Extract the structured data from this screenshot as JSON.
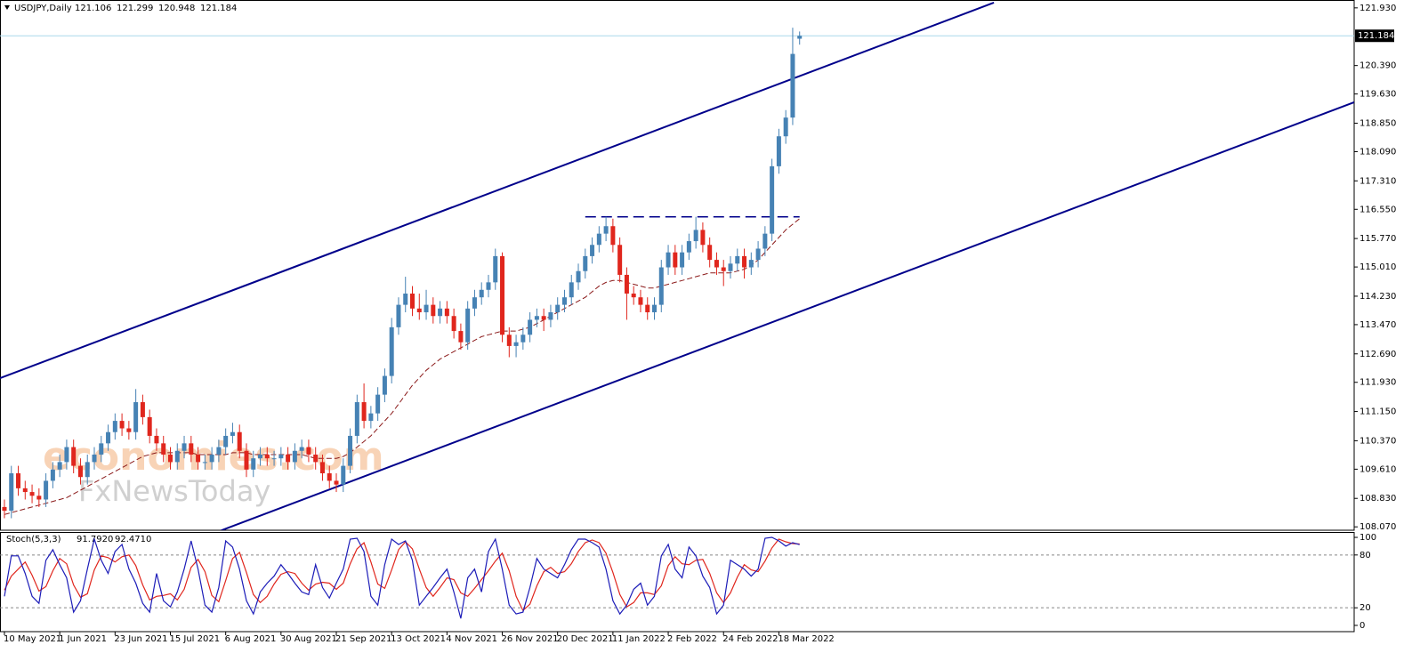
{
  "chart_data": {
    "type": "candlestick",
    "symbol": "USDJPY,Daily",
    "xlim": [
      -0.64,
      195.2
    ],
    "ylim": [
      107.98,
      122.14
    ],
    "yticks": [
      {
        "value": 108.07,
        "label": "108.070"
      },
      {
        "value": 108.83,
        "label": "108.830"
      },
      {
        "value": 109.61,
        "label": "109.610"
      },
      {
        "value": 110.37,
        "label": "110.370"
      },
      {
        "value": 111.15,
        "label": "111.150"
      },
      {
        "value": 111.93,
        "label": "111.930"
      },
      {
        "value": 112.69,
        "label": "112.690"
      },
      {
        "value": 113.47,
        "label": "113.470"
      },
      {
        "value": 114.23,
        "label": "114.230"
      },
      {
        "value": 115.01,
        "label": "115.010"
      },
      {
        "value": 115.77,
        "label": "115.770"
      },
      {
        "value": 116.55,
        "label": "116.550"
      },
      {
        "value": 117.31,
        "label": "117.310"
      },
      {
        "value": 118.09,
        "label": "118.090"
      },
      {
        "value": 118.85,
        "label": "118.850"
      },
      {
        "value": 119.63,
        "label": "119.630"
      },
      {
        "value": 120.39,
        "label": "120.390"
      },
      {
        "value": 121.93,
        "label": "121.930"
      }
    ],
    "xticks": [
      {
        "value": 0,
        "label": "10 May 2021"
      },
      {
        "value": 8,
        "label": "1 Jun 2021"
      },
      {
        "value": 16,
        "label": "23 Jun 2021"
      },
      {
        "value": 24,
        "label": "15 Jul 2021"
      },
      {
        "value": 32,
        "label": "6 Aug 2021"
      },
      {
        "value": 40,
        "label": "30 Aug 2021"
      },
      {
        "value": 48,
        "label": "21 Sep 2021"
      },
      {
        "value": 56,
        "label": "13 Oct 2021"
      },
      {
        "value": 64,
        "label": "4 Nov 2021"
      },
      {
        "value": 72,
        "label": "26 Nov 2021"
      },
      {
        "value": 80,
        "label": "20 Dec 2021"
      },
      {
        "value": 88,
        "label": "11 Jan 2022"
      },
      {
        "value": 96,
        "label": "2 Feb 2022"
      },
      {
        "value": 104,
        "label": "24 Feb 2022"
      },
      {
        "value": 112,
        "label": "18 Mar 2022"
      }
    ],
    "up_color": "#4682b4",
    "down_color": "#e0261d",
    "ohlc": [
      [
        108.6,
        108.8,
        108.3,
        108.5
      ],
      [
        108.5,
        109.7,
        108.3,
        109.5
      ],
      [
        109.5,
        109.7,
        108.9,
        109.1
      ],
      [
        109.1,
        109.3,
        108.8,
        109.0
      ],
      [
        109.0,
        109.2,
        108.7,
        108.9
      ],
      [
        108.9,
        109.1,
        108.6,
        108.8
      ],
      [
        108.8,
        109.5,
        108.6,
        109.3
      ],
      [
        109.3,
        109.8,
        109.1,
        109.6
      ],
      [
        109.6,
        110.0,
        109.4,
        109.8
      ],
      [
        109.8,
        110.4,
        109.6,
        110.2
      ],
      [
        110.2,
        110.4,
        109.5,
        109.7
      ],
      [
        109.7,
        109.9,
        109.2,
        109.4
      ],
      [
        109.4,
        110.0,
        109.2,
        109.8
      ],
      [
        109.8,
        110.2,
        109.6,
        110.0
      ],
      [
        110.0,
        110.5,
        109.8,
        110.3
      ],
      [
        110.3,
        110.8,
        110.1,
        110.6
      ],
      [
        110.6,
        111.1,
        110.4,
        110.9
      ],
      [
        110.9,
        111.1,
        110.5,
        110.7
      ],
      [
        110.7,
        110.9,
        110.4,
        110.6
      ],
      [
        110.6,
        111.75,
        110.4,
        111.4
      ],
      [
        111.4,
        111.6,
        110.8,
        111.0
      ],
      [
        111.0,
        111.2,
        110.3,
        110.5
      ],
      [
        110.5,
        110.7,
        110.1,
        110.3
      ],
      [
        110.3,
        110.5,
        109.8,
        110.0
      ],
      [
        110.0,
        110.2,
        109.6,
        109.8
      ],
      [
        109.8,
        110.3,
        109.6,
        110.1
      ],
      [
        110.1,
        110.5,
        109.9,
        110.3
      ],
      [
        110.3,
        110.5,
        109.8,
        110.0
      ],
      [
        110.0,
        110.2,
        109.6,
        109.8
      ],
      [
        109.8,
        110.0,
        109.6,
        109.8
      ],
      [
        109.8,
        110.2,
        109.6,
        110.0
      ],
      [
        110.0,
        110.4,
        109.8,
        110.2
      ],
      [
        110.2,
        110.7,
        110.0,
        110.5
      ],
      [
        110.5,
        110.85,
        110.3,
        110.6
      ],
      [
        110.6,
        110.8,
        109.9,
        110.1
      ],
      [
        110.1,
        110.3,
        109.4,
        109.6
      ],
      [
        109.6,
        110.1,
        109.4,
        109.9
      ],
      [
        109.9,
        110.2,
        109.7,
        110.0
      ],
      [
        110.0,
        110.2,
        109.7,
        109.9
      ],
      [
        109.9,
        110.1,
        109.7,
        109.9
      ],
      [
        109.9,
        110.2,
        109.7,
        110.0
      ],
      [
        110.0,
        110.2,
        109.6,
        109.8
      ],
      [
        109.8,
        110.3,
        109.6,
        110.1
      ],
      [
        110.1,
        110.4,
        109.9,
        110.2
      ],
      [
        110.2,
        110.4,
        109.8,
        110.0
      ],
      [
        110.0,
        110.2,
        109.6,
        109.8
      ],
      [
        109.8,
        110.0,
        109.3,
        109.5
      ],
      [
        109.5,
        109.7,
        109.1,
        109.3
      ],
      [
        109.3,
        109.5,
        109.0,
        109.2
      ],
      [
        109.2,
        109.9,
        109.0,
        109.7
      ],
      [
        109.7,
        110.7,
        109.5,
        110.5
      ],
      [
        110.5,
        111.6,
        110.3,
        111.4
      ],
      [
        111.4,
        111.9,
        110.7,
        110.9
      ],
      [
        110.9,
        111.3,
        110.7,
        111.1
      ],
      [
        111.1,
        111.8,
        110.9,
        111.6
      ],
      [
        111.6,
        112.3,
        111.4,
        112.1
      ],
      [
        112.1,
        113.65,
        111.9,
        113.4
      ],
      [
        113.4,
        114.2,
        113.2,
        114.0
      ],
      [
        114.0,
        114.75,
        113.8,
        114.3
      ],
      [
        114.3,
        114.5,
        113.7,
        113.9
      ],
      [
        113.9,
        114.3,
        113.6,
        113.8
      ],
      [
        113.8,
        114.4,
        113.6,
        114.0
      ],
      [
        114.0,
        114.2,
        113.5,
        113.7
      ],
      [
        113.7,
        114.1,
        113.5,
        113.9
      ],
      [
        113.9,
        114.1,
        113.5,
        113.7
      ],
      [
        113.7,
        113.9,
        113.1,
        113.3
      ],
      [
        113.3,
        113.5,
        112.8,
        113.0
      ],
      [
        113.0,
        114.1,
        112.8,
        113.9
      ],
      [
        113.9,
        114.4,
        113.7,
        114.2
      ],
      [
        114.2,
        114.6,
        114.0,
        114.4
      ],
      [
        114.4,
        114.8,
        114.2,
        114.6
      ],
      [
        114.6,
        115.5,
        114.4,
        115.3
      ],
      [
        115.3,
        115.4,
        113.0,
        113.2
      ],
      [
        113.2,
        113.4,
        112.6,
        112.9
      ],
      [
        112.9,
        113.2,
        112.6,
        113.0
      ],
      [
        113.0,
        113.4,
        112.8,
        113.2
      ],
      [
        113.2,
        113.8,
        113.0,
        113.6
      ],
      [
        113.6,
        113.9,
        113.4,
        113.7
      ],
      [
        113.7,
        113.9,
        113.3,
        113.6
      ],
      [
        113.6,
        114.0,
        113.4,
        113.8
      ],
      [
        113.8,
        114.2,
        113.6,
        114.0
      ],
      [
        114.0,
        114.4,
        113.8,
        114.2
      ],
      [
        114.2,
        114.8,
        114.0,
        114.6
      ],
      [
        114.6,
        115.1,
        114.4,
        114.9
      ],
      [
        114.9,
        115.5,
        114.7,
        115.3
      ],
      [
        115.3,
        115.8,
        115.1,
        115.6
      ],
      [
        115.6,
        116.1,
        115.4,
        115.9
      ],
      [
        115.9,
        116.35,
        115.7,
        116.1
      ],
      [
        116.1,
        116.3,
        115.4,
        115.6
      ],
      [
        115.6,
        115.8,
        114.6,
        114.8
      ],
      [
        114.8,
        115.0,
        113.6,
        114.3
      ],
      [
        114.3,
        114.5,
        114.0,
        114.2
      ],
      [
        114.2,
        114.4,
        113.8,
        114.0
      ],
      [
        114.0,
        114.2,
        113.6,
        113.8
      ],
      [
        113.8,
        114.2,
        113.6,
        114.0
      ],
      [
        114.0,
        115.2,
        113.8,
        115.0
      ],
      [
        115.0,
        115.6,
        114.8,
        115.4
      ],
      [
        115.4,
        115.6,
        114.8,
        115.0
      ],
      [
        115.0,
        115.6,
        114.8,
        115.4
      ],
      [
        115.4,
        115.9,
        115.2,
        115.7
      ],
      [
        115.7,
        116.35,
        115.5,
        116.0
      ],
      [
        116.0,
        116.2,
        115.4,
        115.6
      ],
      [
        115.6,
        115.8,
        115.0,
        115.2
      ],
      [
        115.2,
        115.4,
        114.8,
        115.0
      ],
      [
        115.0,
        115.2,
        114.5,
        114.9
      ],
      [
        114.9,
        115.3,
        114.7,
        115.1
      ],
      [
        115.1,
        115.5,
        114.9,
        115.3
      ],
      [
        115.3,
        115.5,
        114.7,
        115.0
      ],
      [
        115.0,
        115.4,
        114.8,
        115.2
      ],
      [
        115.2,
        115.7,
        115.0,
        115.5
      ],
      [
        115.5,
        116.1,
        115.3,
        115.9
      ],
      [
        115.9,
        117.9,
        115.7,
        117.7
      ],
      [
        117.7,
        118.7,
        117.5,
        118.5
      ],
      [
        118.5,
        119.2,
        118.3,
        119.0
      ],
      [
        119.0,
        121.4,
        118.8,
        120.7
      ],
      [
        121.106,
        121.299,
        120.948,
        121.184
      ]
    ],
    "ma": {
      "color": "#8b1a1a",
      "values": [
        108.4,
        108.45,
        108.5,
        108.55,
        108.6,
        108.65,
        108.7,
        108.75,
        108.8,
        108.85,
        108.95,
        109.05,
        109.15,
        109.25,
        109.35,
        109.45,
        109.55,
        109.65,
        109.75,
        109.85,
        109.95,
        110.0,
        110.05,
        110.05,
        110.05,
        110.05,
        110.05,
        110.05,
        110.0,
        110.0,
        110.0,
        110.0,
        110.0,
        110.05,
        110.05,
        110.05,
        110.0,
        110.0,
        110.0,
        110.0,
        110.0,
        110.0,
        110.0,
        110.0,
        109.95,
        109.9,
        109.9,
        109.9,
        109.9,
        109.95,
        110.05,
        110.2,
        110.35,
        110.5,
        110.7,
        110.9,
        111.1,
        111.35,
        111.6,
        111.85,
        112.05,
        112.25,
        112.4,
        112.55,
        112.65,
        112.75,
        112.85,
        112.95,
        113.05,
        113.15,
        113.2,
        113.25,
        113.3,
        113.3,
        113.3,
        113.35,
        113.4,
        113.5,
        113.6,
        113.7,
        113.8,
        113.9,
        114.0,
        114.1,
        114.2,
        114.35,
        114.5,
        114.6,
        114.65,
        114.65,
        114.6,
        114.55,
        114.5,
        114.45,
        114.45,
        114.5,
        114.55,
        114.6,
        114.65,
        114.7,
        114.75,
        114.8,
        114.85,
        114.85,
        114.85,
        114.85,
        114.9,
        114.95,
        115.05,
        115.2,
        115.4,
        115.6,
        115.8,
        116.0,
        116.15,
        116.3
      ]
    },
    "trendlines": [
      {
        "color": "#00008b",
        "points": [
          [
            -0.64,
            112.04
          ],
          [
            143.1,
            122.07
          ]
        ]
      },
      {
        "color": "#00008b",
        "points": [
          [
            31.3,
            107.97
          ],
          [
            195.2,
            119.41
          ]
        ]
      }
    ],
    "resistance": {
      "color": "#00008b",
      "level": 116.35,
      "from": 84,
      "to": 115
    },
    "last_price_line_color": "#a9d8ea",
    "watermarks": [
      "economies.com",
      "FxNewsToday"
    ],
    "stochastic": {
      "name": "Stoch(5,3,3)",
      "readout": [
        "91.7920",
        "92.4710"
      ],
      "ylim": [
        -7.1,
        106.1
      ],
      "yticks": [
        0,
        20,
        80,
        100
      ],
      "k": {
        "color": "#1c1cb8",
        "values": [
          33,
          79,
          79,
          59,
          33,
          25,
          74,
          86,
          69,
          54,
          15,
          28,
          64,
          98,
          74,
          59,
          84,
          92,
          64,
          48,
          25,
          15,
          59,
          28,
          21,
          38,
          64,
          96,
          64,
          23,
          15,
          43,
          96,
          89,
          64,
          28,
          13,
          38,
          48,
          56,
          69,
          59,
          48,
          38,
          35,
          69,
          43,
          31,
          48,
          64,
          98,
          99,
          84,
          33,
          23,
          69,
          98,
          92,
          96,
          74,
          23,
          33,
          43,
          54,
          64,
          38,
          8,
          54,
          64,
          38,
          84,
          98,
          64,
          23,
          13,
          15,
          43,
          76,
          64,
          59,
          54,
          69,
          86,
          98,
          98,
          94,
          89,
          64,
          28,
          13,
          23,
          41,
          48,
          23,
          33,
          79,
          92,
          64,
          54,
          89,
          79,
          56,
          43,
          13,
          23,
          74,
          69,
          64,
          56,
          64,
          99,
          100,
          96,
          90,
          94,
          91.792
        ]
      },
      "d": {
        "color": "#e0261d",
        "values": [
          40,
          56,
          64,
          72,
          57,
          39,
          44,
          62,
          76,
          70,
          46,
          32,
          36,
          63,
          79,
          77,
          72,
          78,
          80,
          68,
          46,
          29,
          33,
          34,
          36,
          29,
          41,
          66,
          75,
          61,
          34,
          27,
          51,
          76,
          83,
          60,
          35,
          26,
          33,
          47,
          58,
          61,
          59,
          48,
          40,
          47,
          49,
          48,
          41,
          48,
          70,
          87,
          94,
          72,
          47,
          42,
          63,
          86,
          95,
          87,
          64,
          43,
          33,
          43,
          54,
          52,
          37,
          33,
          42,
          52,
          62,
          73,
          82,
          62,
          33,
          17,
          24,
          45,
          61,
          66,
          59,
          61,
          70,
          84,
          94,
          97,
          94,
          82,
          60,
          35,
          21,
          26,
          37,
          37,
          35,
          45,
          68,
          78,
          70,
          69,
          74,
          75,
          59,
          37,
          26,
          37,
          55,
          69,
          63,
          61,
          73,
          88,
          98,
          95,
          93,
          92.471
        ]
      }
    }
  }
}
